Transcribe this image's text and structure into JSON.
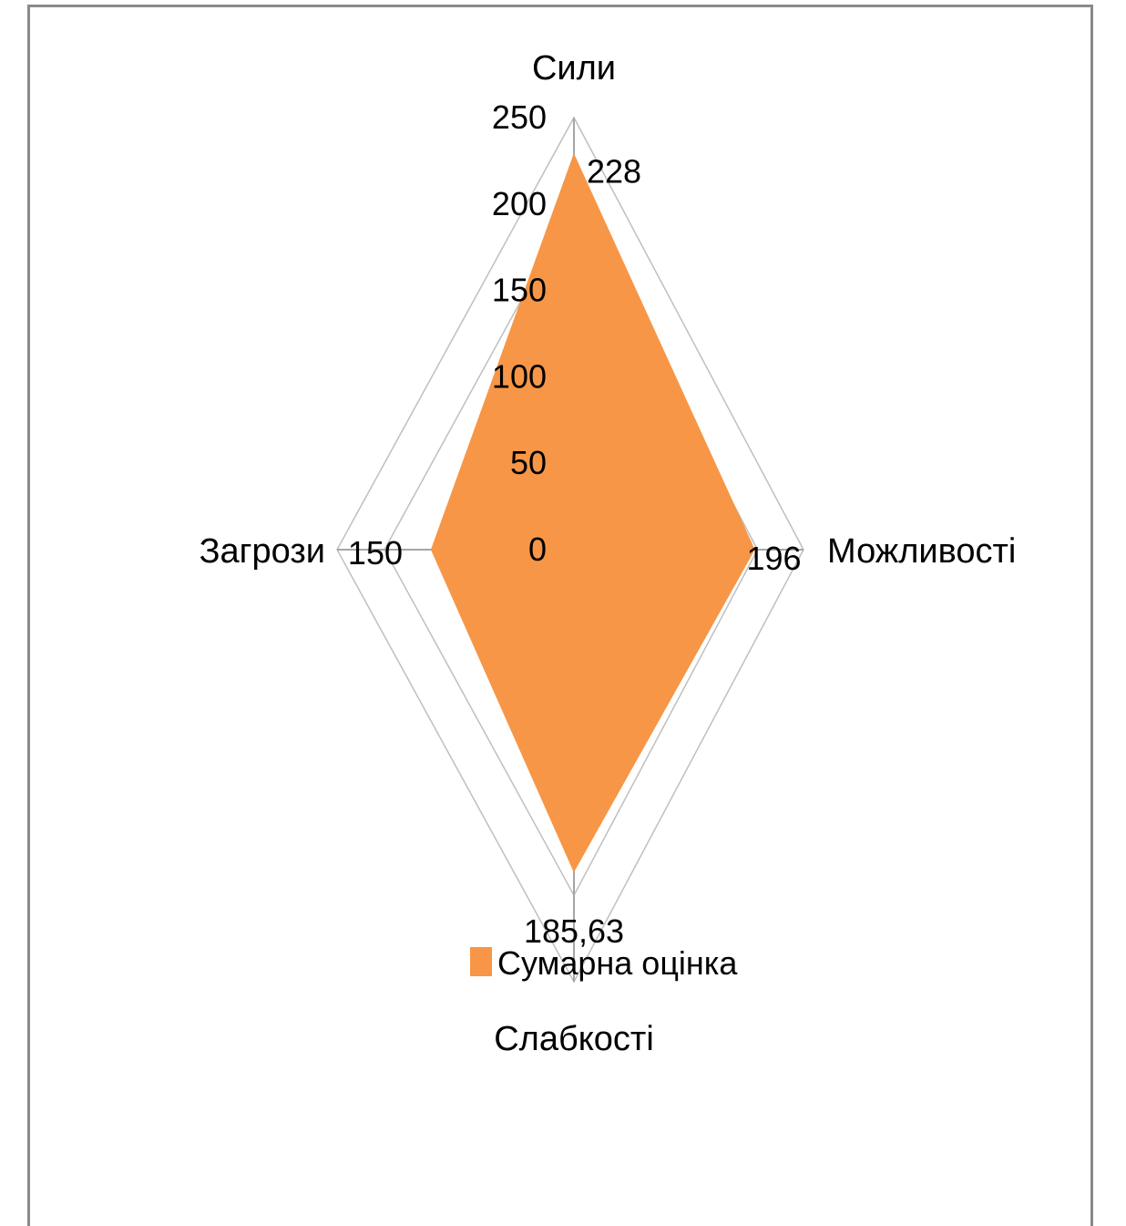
{
  "chart_data": {
    "type": "radar",
    "categories": [
      "Сили",
      "Можливості",
      "Слабкості",
      "Загрози"
    ],
    "series": [
      {
        "name": "Сумарна оцінка",
        "values": [
          228,
          196,
          185.63,
          150
        ],
        "data_labels": [
          "228",
          "196",
          "185,63",
          "150"
        ],
        "color": "#F79646"
      }
    ],
    "r_ticks": [
      0,
      50,
      100,
      150,
      200,
      250
    ],
    "r_range": [
      0,
      250
    ],
    "legend": "bottom",
    "gridline_color": "#BFBFBF",
    "axis_color": "#A6A6A6"
  }
}
